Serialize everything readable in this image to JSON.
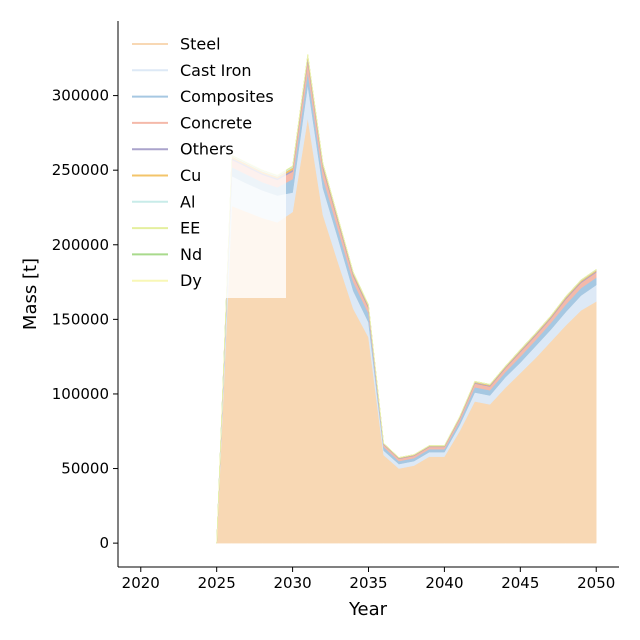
{
  "chart_data": {
    "type": "area",
    "xlabel": "Year",
    "ylabel": "Mass [t]",
    "xlim": [
      2018.5,
      2051.5
    ],
    "ylim": [
      -16000,
      350000
    ],
    "xticks": [
      2020,
      2025,
      2030,
      2035,
      2040,
      2045,
      2050
    ],
    "yticks": [
      0,
      50000,
      100000,
      150000,
      200000,
      250000,
      300000
    ],
    "x": [
      2025,
      2026,
      2027,
      2028,
      2029,
      2030,
      2031,
      2032,
      2033,
      2034,
      2035,
      2036,
      2037,
      2038,
      2039,
      2040,
      2041,
      2042,
      2043,
      2044,
      2045,
      2046,
      2047,
      2048,
      2049,
      2050
    ],
    "legend_position": "top-left",
    "series": [
      {
        "name": "Steel",
        "color": "#f8d8b4",
        "values": [
          0,
          226000,
          222000,
          218000,
          215000,
          222000,
          285000,
          220000,
          188000,
          157000,
          138000,
          59000,
          50000,
          52000,
          58000,
          58000,
          75000,
          95000,
          93000,
          104000,
          114000,
          124000,
          135000,
          146000,
          156000,
          162000
        ]
      },
      {
        "name": "Cast Iron",
        "color": "#dde9f6",
        "values": [
          0,
          20000,
          19000,
          18500,
          18000,
          13000,
          22000,
          18000,
          16000,
          12000,
          10000,
          3000,
          3000,
          3000,
          3000,
          3000,
          4000,
          6000,
          6000,
          7000,
          7000,
          8000,
          8000,
          9000,
          10000,
          11000
        ]
      },
      {
        "name": "Composites",
        "color": "#a6c8e2",
        "values": [
          0,
          6000,
          6000,
          5500,
          5500,
          9000,
          9000,
          7000,
          6000,
          6000,
          6000,
          2500,
          2000,
          2000,
          2000,
          2000,
          2500,
          3500,
          3500,
          3500,
          4000,
          4000,
          4500,
          5000,
          5000,
          5000
        ]
      },
      {
        "name": "Concrete",
        "color": "#f4b9aa",
        "values": [
          0,
          5000,
          5000,
          5000,
          5000,
          5000,
          7000,
          6000,
          5000,
          4000,
          3500,
          1500,
          1500,
          1500,
          1500,
          1500,
          2000,
          2500,
          2500,
          2500,
          3000,
          3000,
          3000,
          3500,
          3500,
          3500
        ]
      },
      {
        "name": "Others",
        "color": "#aaa3cc",
        "values": [
          0,
          1000,
          1000,
          1000,
          1000,
          1200,
          1500,
          1200,
          1000,
          900,
          800,
          300,
          300,
          300,
          300,
          300,
          400,
          500,
          500,
          500,
          600,
          600,
          600,
          700,
          700,
          700
        ]
      },
      {
        "name": "Cu",
        "color": "#f3c46a",
        "values": [
          0,
          1200,
          1200,
          1200,
          1200,
          1500,
          1800,
          1400,
          1200,
          1000,
          900,
          400,
          350,
          350,
          350,
          350,
          450,
          600,
          600,
          600,
          700,
          700,
          700,
          800,
          800,
          800
        ]
      },
      {
        "name": "Al",
        "color": "#c8ece9",
        "values": [
          0,
          500,
          500,
          500,
          500,
          600,
          800,
          600,
          500,
          400,
          400,
          150,
          150,
          150,
          150,
          150,
          200,
          250,
          250,
          250,
          300,
          300,
          300,
          300,
          300,
          300
        ]
      },
      {
        "name": "EE",
        "color": "#e4ef9e",
        "values": [
          0,
          300,
          300,
          300,
          300,
          400,
          500,
          400,
          300,
          300,
          250,
          100,
          100,
          100,
          100,
          100,
          150,
          150,
          150,
          150,
          200,
          200,
          200,
          200,
          200,
          200
        ]
      },
      {
        "name": "Nd",
        "color": "#a9da8c",
        "values": [
          0,
          100,
          100,
          100,
          100,
          150,
          150,
          120,
          100,
          100,
          80,
          30,
          30,
          30,
          30,
          30,
          40,
          50,
          50,
          50,
          60,
          60,
          60,
          70,
          70,
          70
        ]
      },
      {
        "name": "Dy",
        "color": "#f8f7b6",
        "values": [
          0,
          50,
          50,
          50,
          50,
          60,
          60,
          50,
          40,
          40,
          30,
          10,
          10,
          10,
          10,
          10,
          15,
          20,
          20,
          20,
          25,
          25,
          25,
          30,
          30,
          30
        ]
      }
    ]
  }
}
